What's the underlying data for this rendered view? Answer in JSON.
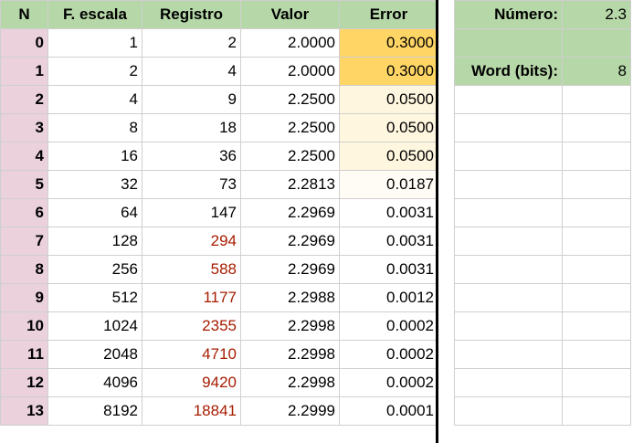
{
  "headers": {
    "n": "N",
    "escala": "F. escala",
    "registro": "Registro",
    "valor": "Valor",
    "error": "Error"
  },
  "rows": [
    {
      "n": "0",
      "escala": "1",
      "registro": "2",
      "valor": "2.0000",
      "error": "0.3000",
      "reg_red": false,
      "err_bg": "#ffd666"
    },
    {
      "n": "1",
      "escala": "2",
      "registro": "4",
      "valor": "2.0000",
      "error": "0.3000",
      "reg_red": false,
      "err_bg": "#ffd666"
    },
    {
      "n": "2",
      "escala": "4",
      "registro": "9",
      "valor": "2.2500",
      "error": "0.0500",
      "reg_red": false,
      "err_bg": "#fff6df"
    },
    {
      "n": "3",
      "escala": "8",
      "registro": "18",
      "valor": "2.2500",
      "error": "0.0500",
      "reg_red": false,
      "err_bg": "#fff6df"
    },
    {
      "n": "4",
      "escala": "16",
      "registro": "36",
      "valor": "2.2500",
      "error": "0.0500",
      "reg_red": false,
      "err_bg": "#fff6df"
    },
    {
      "n": "5",
      "escala": "32",
      "registro": "73",
      "valor": "2.2813",
      "error": "0.0187",
      "reg_red": false,
      "err_bg": "#fffcf5"
    },
    {
      "n": "6",
      "escala": "64",
      "registro": "147",
      "valor": "2.2969",
      "error": "0.0031",
      "reg_red": false,
      "err_bg": "#ffffff"
    },
    {
      "n": "7",
      "escala": "128",
      "registro": "294",
      "valor": "2.2969",
      "error": "0.0031",
      "reg_red": true,
      "err_bg": "#ffffff"
    },
    {
      "n": "8",
      "escala": "256",
      "registro": "588",
      "valor": "2.2969",
      "error": "0.0031",
      "reg_red": true,
      "err_bg": "#ffffff"
    },
    {
      "n": "9",
      "escala": "512",
      "registro": "1177",
      "valor": "2.2988",
      "error": "0.0012",
      "reg_red": true,
      "err_bg": "#ffffff"
    },
    {
      "n": "10",
      "escala": "1024",
      "registro": "2355",
      "valor": "2.2998",
      "error": "0.0002",
      "reg_red": true,
      "err_bg": "#ffffff"
    },
    {
      "n": "11",
      "escala": "2048",
      "registro": "4710",
      "valor": "2.2998",
      "error": "0.0002",
      "reg_red": true,
      "err_bg": "#ffffff"
    },
    {
      "n": "12",
      "escala": "4096",
      "registro": "9420",
      "valor": "2.2998",
      "error": "0.0002",
      "reg_red": true,
      "err_bg": "#ffffff"
    },
    {
      "n": "13",
      "escala": "8192",
      "registro": "18841",
      "valor": "2.2999",
      "error": "0.0001",
      "reg_red": true,
      "err_bg": "#ffffff"
    }
  ],
  "side": {
    "numero_label": "Número:",
    "numero_value": "2.3",
    "word_label": "Word (bits):",
    "word_value": "8"
  },
  "colors": {
    "header_green": "#b6d7a8",
    "index_pink": "#ead1dc",
    "red_text": "#a61c00"
  }
}
